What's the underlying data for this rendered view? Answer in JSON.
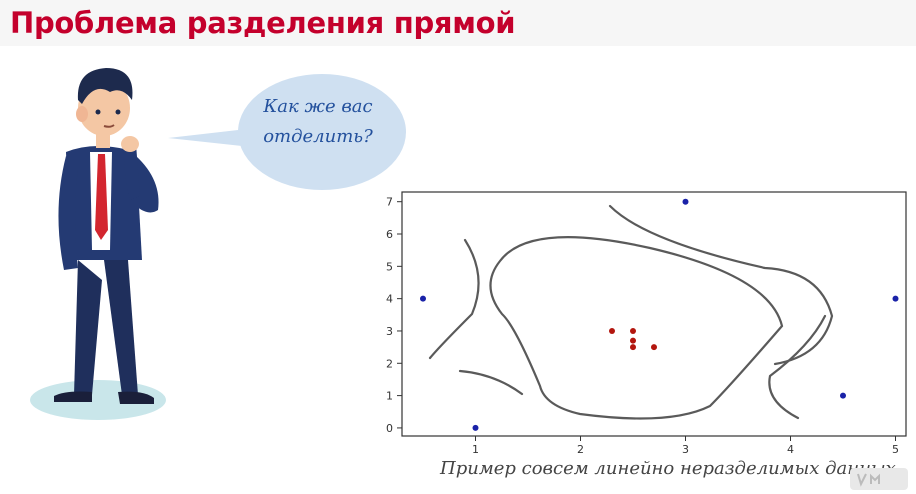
{
  "header": {
    "title": "Проблема разделения прямой"
  },
  "speech_bubble": {
    "text": "Как же вас отделить?"
  },
  "caption": "Пример совсем линейно неразделимых данных",
  "colors": {
    "title": "#c4002c",
    "bubble_fill": "#cfe0f1",
    "bubble_text": "#24519d",
    "blue_points": "#1a22a8",
    "red_points": "#b3160e"
  },
  "chart_data": {
    "type": "scatter",
    "title": "",
    "xlabel": "",
    "ylabel": "",
    "xlim": [
      0.3,
      5.1
    ],
    "ylim": [
      -0.25,
      7.3
    ],
    "x_ticks": [
      1,
      2,
      3,
      4,
      5
    ],
    "y_ticks": [
      0,
      1,
      2,
      3,
      4,
      5,
      6,
      7
    ],
    "grid": false,
    "series": [
      {
        "color": "#1a22a8",
        "points": [
          [
            0.5,
            4
          ],
          [
            1,
            0
          ],
          [
            3,
            7
          ],
          [
            4.5,
            1
          ],
          [
            5,
            4
          ]
        ]
      },
      {
        "color": "#b3160e",
        "points": [
          [
            2.3,
            3
          ],
          [
            2.5,
            3
          ],
          [
            2.5,
            2.7
          ],
          [
            2.5,
            2.5
          ],
          [
            2.7,
            2.5
          ]
        ]
      }
    ],
    "annotations": "hand-drawn separating curves"
  },
  "icons": {
    "person": "thinking-businessman-icon",
    "video_badge": "vimeo-logo-icon"
  }
}
